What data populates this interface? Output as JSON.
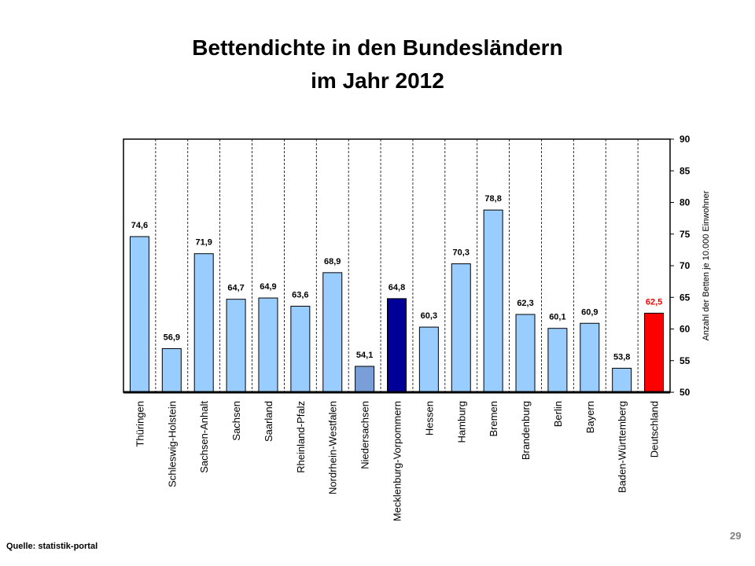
{
  "title_line1": "Bettendichte in den Bundesländern",
  "title_line2": "im Jahr 2012",
  "source": "Quelle: statistik-portal",
  "page_number": "29",
  "chart_data": {
    "type": "bar",
    "title": "Bettendichte in den Bundesländern im Jahr 2012",
    "ylabel": "Anzahl der Betten je 10.000 Einwohner",
    "xlabel": "",
    "ylim": [
      50,
      90
    ],
    "yticks": [
      "50",
      "55",
      "60",
      "65",
      "70",
      "75",
      "80",
      "85",
      "90"
    ],
    "y_axis_side": "right",
    "grid": "vertical dashed separators",
    "categories": [
      "Thüringen",
      "Schleswig-Holstein",
      "Sachsen-Anhalt",
      "Sachsen",
      "Saarland",
      "Rheinland-Pfalz",
      "Nordrhein-Westfalen",
      "Niedersachsen",
      "Mecklenburg-Vorpommern",
      "Hessen",
      "Hamburg",
      "Bremen",
      "Brandenburg",
      "Berlin",
      "Bayern",
      "Baden-Württemberg",
      "Deutschland"
    ],
    "values": [
      74.6,
      56.9,
      71.9,
      64.7,
      64.9,
      63.6,
      68.9,
      54.1,
      64.8,
      60.3,
      70.3,
      78.8,
      62.3,
      60.1,
      60.9,
      53.8,
      62.5
    ],
    "value_labels": [
      "74,6",
      "56,9",
      "71,9",
      "64,7",
      "64,9",
      "63,6",
      "68,9",
      "54,1",
      "64,8",
      "60,3",
      "70,3",
      "78,8",
      "62,3",
      "60,1",
      "60,9",
      "53,8",
      "62,5"
    ],
    "colors": [
      "#99ccff",
      "#99ccff",
      "#99ccff",
      "#99ccff",
      "#99ccff",
      "#99ccff",
      "#99ccff",
      "#7a9fd8",
      "#000099",
      "#99ccff",
      "#99ccff",
      "#99ccff",
      "#99ccff",
      "#99ccff",
      "#99ccff",
      "#99ccff",
      "#ff0000"
    ],
    "value_label_colors": [
      "#000000",
      "#000000",
      "#000000",
      "#000000",
      "#000000",
      "#000000",
      "#000000",
      "#000000",
      "#000000",
      "#000000",
      "#000000",
      "#000000",
      "#000000",
      "#000000",
      "#000000",
      "#000000",
      "#ff0000"
    ]
  }
}
